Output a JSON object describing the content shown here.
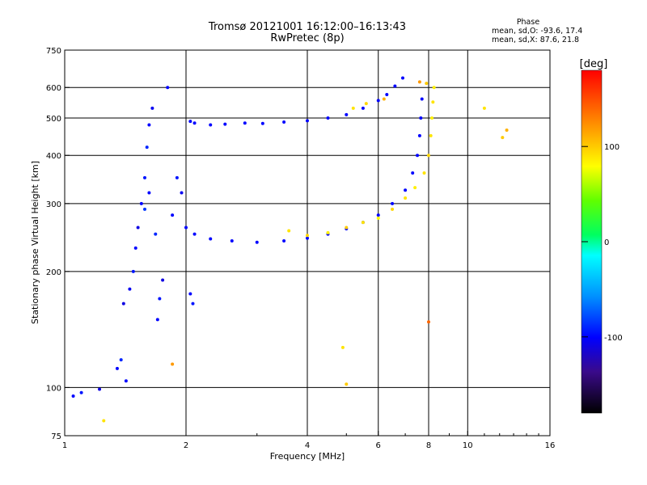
{
  "chart_data": {
    "type": "scatter",
    "title": "Tromsø 20121001 16:12:00–16:13:43",
    "subtitle": "RwPretec (8p)",
    "xlabel": "Frequency [MHz]",
    "ylabel": "Stationary phase Virtual Height [km]",
    "xscale": "log2",
    "yscale": "log",
    "xlim": [
      1,
      16
    ],
    "ylim": [
      75,
      750
    ],
    "x_ticks": [
      1,
      2,
      4,
      6,
      8,
      10,
      16
    ],
    "x_tick_labels": [
      "1",
      "2",
      "4",
      "6",
      "8",
      "10",
      "16"
    ],
    "y_ticks": [
      75,
      100,
      200,
      300,
      400,
      500,
      600,
      750
    ],
    "y_tick_labels": [
      "75",
      "100",
      "200",
      "300",
      "400",
      "500",
      "600",
      "750"
    ],
    "grid": true,
    "phase_info": {
      "header": "Phase",
      "line_o": "mean, sd,O: -93.6, 17.4",
      "line_x": "mean, sd,X:  87.6, 21.8"
    },
    "colorbar": {
      "label": "[deg]",
      "min": -180,
      "max": 180,
      "ticks": [
        100,
        0,
        -100
      ],
      "tick_labels": [
        "100",
        "0",
        "-100"
      ]
    },
    "series": [
      {
        "mode": "O",
        "points": [
          [
            1.05,
            95,
            -100
          ],
          [
            1.1,
            97,
            -95
          ],
          [
            1.22,
            99,
            -110
          ],
          [
            1.35,
            112,
            -100
          ],
          [
            1.38,
            118,
            -90
          ],
          [
            1.42,
            104,
            -100
          ],
          [
            1.4,
            165,
            -110
          ],
          [
            1.45,
            180,
            -105
          ],
          [
            1.48,
            200,
            -95
          ],
          [
            1.5,
            230,
            -100
          ],
          [
            1.52,
            260,
            -110
          ],
          [
            1.55,
            300,
            -100
          ],
          [
            1.58,
            350,
            -95
          ],
          [
            1.6,
            420,
            -90
          ],
          [
            1.62,
            480,
            -100
          ],
          [
            1.65,
            530,
            -105
          ],
          [
            1.7,
            150,
            -100
          ],
          [
            1.72,
            170,
            -95
          ],
          [
            1.75,
            190,
            -110
          ],
          [
            1.8,
            600,
            -100
          ],
          [
            1.68,
            250,
            -90
          ],
          [
            1.58,
            290,
            -85
          ],
          [
            1.62,
            320,
            -100
          ],
          [
            1.85,
            280,
            -100
          ],
          [
            1.9,
            350,
            -95
          ],
          [
            1.95,
            320,
            -105
          ],
          [
            2.0,
            260,
            -100
          ],
          [
            2.05,
            175,
            -100
          ],
          [
            2.08,
            165,
            -95
          ],
          [
            2.05,
            490,
            -100
          ],
          [
            2.1,
            485,
            -100
          ],
          [
            2.3,
            480,
            -100
          ],
          [
            2.5,
            482,
            -100
          ],
          [
            2.8,
            485,
            -100
          ],
          [
            3.1,
            484,
            -100
          ],
          [
            3.5,
            488,
            -100
          ],
          [
            4.0,
            492,
            -100
          ],
          [
            4.5,
            500,
            -100
          ],
          [
            5.0,
            510,
            -100
          ],
          [
            5.5,
            530,
            -100
          ],
          [
            6.0,
            555,
            -100
          ],
          [
            6.3,
            575,
            -100
          ],
          [
            6.6,
            605,
            -100
          ],
          [
            6.9,
            635,
            -100
          ],
          [
            2.1,
            250,
            -100
          ],
          [
            2.3,
            243,
            -100
          ],
          [
            2.6,
            240,
            -100
          ],
          [
            3.0,
            238,
            -100
          ],
          [
            3.5,
            240,
            -100
          ],
          [
            4.0,
            244,
            -100
          ],
          [
            4.5,
            250,
            -100
          ],
          [
            5.0,
            258,
            -100
          ],
          [
            5.5,
            268,
            -100
          ],
          [
            6.0,
            280,
            -100
          ],
          [
            6.5,
            300,
            -100
          ],
          [
            7.0,
            325,
            -100
          ],
          [
            7.3,
            360,
            -100
          ],
          [
            7.5,
            400,
            -100
          ],
          [
            7.6,
            450,
            -100
          ],
          [
            7.65,
            500,
            -100
          ],
          [
            7.7,
            560,
            -100
          ]
        ]
      },
      {
        "mode": "X",
        "points": [
          [
            3.6,
            255,
            90
          ],
          [
            4.0,
            248,
            95
          ],
          [
            4.5,
            252,
            85
          ],
          [
            5.0,
            260,
            100
          ],
          [
            5.5,
            268,
            90
          ],
          [
            6.0,
            275,
            80
          ],
          [
            6.5,
            290,
            95
          ],
          [
            7.0,
            310,
            90
          ],
          [
            7.4,
            330,
            85
          ],
          [
            7.8,
            360,
            90
          ],
          [
            8.0,
            400,
            95
          ],
          [
            8.1,
            450,
            90
          ],
          [
            8.15,
            500,
            85
          ],
          [
            8.2,
            550,
            90
          ],
          [
            8.25,
            600,
            85
          ],
          [
            7.6,
            620,
            120
          ],
          [
            7.9,
            615,
            100
          ],
          [
            5.2,
            530,
            90
          ],
          [
            5.6,
            545,
            95
          ],
          [
            6.2,
            560,
            110
          ],
          [
            1.25,
            82,
            90
          ],
          [
            1.85,
            115,
            120
          ],
          [
            4.9,
            127,
            90
          ],
          [
            5.0,
            102,
            100
          ],
          [
            8.0,
            148,
            140
          ],
          [
            11.0,
            530,
            90
          ],
          [
            12.5,
            465,
            110
          ],
          [
            12.2,
            445,
            100
          ]
        ]
      }
    ]
  }
}
